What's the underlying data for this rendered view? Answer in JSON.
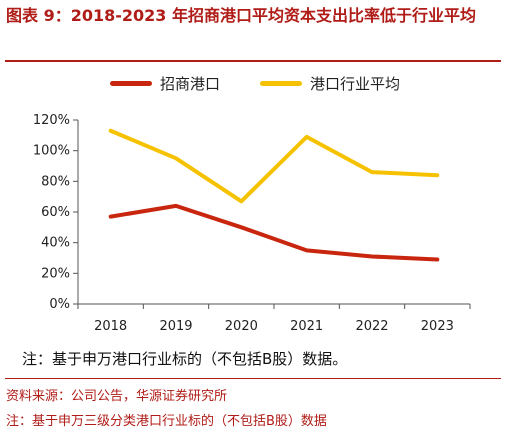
{
  "figure": {
    "title": "图表 9：2018-2023 年招商港口平均资本支出比率低于行业平均",
    "chart_note": "注：基于申万港口行业标的（不包括B股）数据。",
    "source": "资料来源：公司公告，华源证券研究所",
    "footnote": "注：基于申万三级分类港口行业标的（不包括B股）数据"
  },
  "colors": {
    "accent": "#b01c17",
    "series1": "#c8260f",
    "series2": "#f6c200"
  },
  "chart_data": {
    "type": "line",
    "title": "",
    "xlabel": "",
    "ylabel": "",
    "categories": [
      "2018",
      "2019",
      "2020",
      "2021",
      "2022",
      "2023"
    ],
    "series": [
      {
        "name": "招商港口",
        "values": [
          57,
          64,
          50,
          35,
          31,
          29
        ],
        "color": "#c8260f"
      },
      {
        "name": "港口行业平均",
        "values": [
          113,
          95,
          67,
          109,
          86,
          84
        ],
        "color": "#f6c200"
      }
    ],
    "ylim": [
      0,
      120
    ],
    "y_ticks": [
      0,
      20,
      40,
      60,
      80,
      100,
      120
    ],
    "y_tick_labels": [
      "0%",
      "20%",
      "40%",
      "60%",
      "80%",
      "100%",
      "120%"
    ],
    "grid": false,
    "legend_position": "top"
  }
}
